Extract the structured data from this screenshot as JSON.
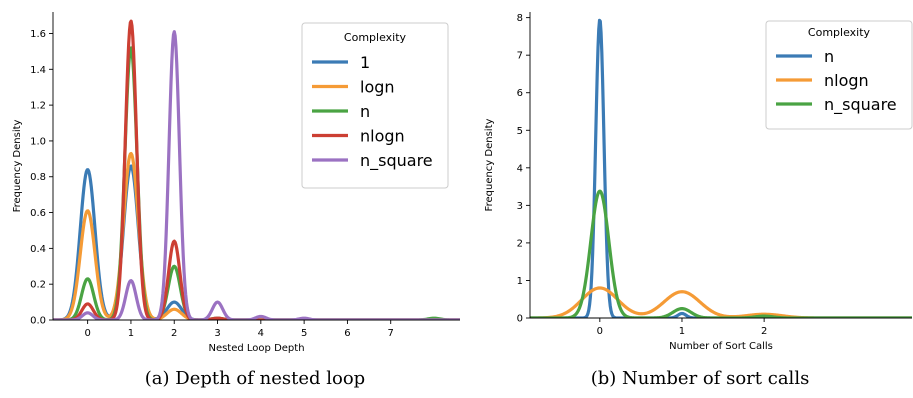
{
  "chart_data": [
    {
      "type": "line",
      "kind": "kde",
      "caption": "(a) Depth of nested loop",
      "xlabel": "Nested Loop Depth",
      "ylabel": "Frequency Density",
      "xlim": [
        -0.8,
        8.6
      ],
      "ylim": [
        0,
        1.72
      ],
      "xticks": [
        0,
        1,
        2,
        3,
        4,
        5,
        6,
        7
      ],
      "yticks": [
        0.0,
        0.2,
        0.4,
        0.6,
        0.8,
        1.0,
        1.2,
        1.4,
        1.6
      ],
      "legend": {
        "title": "Complexity",
        "placement": "top-right"
      },
      "series": [
        {
          "name": "1",
          "color": "#3b7bb5",
          "sigma": 0.17,
          "peaks": [
            [
              0,
              0.84
            ],
            [
              1,
              0.86
            ],
            [
              2,
              0.1
            ]
          ]
        },
        {
          "name": "logn",
          "color": "#f59b36",
          "sigma": 0.17,
          "peaks": [
            [
              0,
              0.61
            ],
            [
              1,
              0.93
            ],
            [
              2,
              0.06
            ]
          ]
        },
        {
          "name": "n",
          "color": "#4aa343",
          "sigma": 0.14,
          "peaks": [
            [
              0,
              0.23
            ],
            [
              1,
              1.52
            ],
            [
              2,
              0.3
            ],
            [
              3,
              0.01
            ],
            [
              8,
              0.01
            ]
          ]
        },
        {
          "name": "nlogn",
          "color": "#cc3f33",
          "sigma": 0.13,
          "peaks": [
            [
              0,
              0.09
            ],
            [
              1,
              1.67
            ],
            [
              2,
              0.44
            ],
            [
              3,
              0.01
            ]
          ]
        },
        {
          "name": "n_square",
          "color": "#9b72c2",
          "sigma": 0.12,
          "peaks": [
            [
              0,
              0.04
            ],
            [
              1,
              0.22
            ],
            [
              2,
              1.61
            ],
            [
              3,
              0.1
            ],
            [
              4,
              0.02
            ],
            [
              5,
              0.01
            ]
          ]
        }
      ]
    },
    {
      "type": "line",
      "kind": "kde",
      "caption": "(b) Number of sort calls",
      "xlabel": "Number of Sort Calls",
      "ylabel": "Frequency Density",
      "xlim": [
        -0.85,
        3.8
      ],
      "ylim": [
        0,
        8.15
      ],
      "xticks": [
        0,
        1,
        2
      ],
      "yticks": [
        0,
        1,
        2,
        3,
        4,
        5,
        6,
        7,
        8
      ],
      "legend": {
        "title": "Complexity",
        "placement": "top-right"
      },
      "series": [
        {
          "name": "n",
          "color": "#3b7bb5",
          "sigma": 0.05,
          "peaks": [
            [
              0,
              7.95
            ],
            [
              1,
              0.12
            ]
          ]
        },
        {
          "name": "nlogn",
          "color": "#f59b36",
          "sigma": 0.22,
          "peaks": [
            [
              0,
              0.8
            ],
            [
              1,
              0.7
            ],
            [
              2,
              0.1
            ]
          ]
        },
        {
          "name": "n_square",
          "color": "#4aa343",
          "sigma": 0.11,
          "peaks": [
            [
              0,
              3.38
            ],
            [
              1,
              0.25
            ],
            [
              2,
              0.05
            ]
          ]
        }
      ]
    }
  ]
}
